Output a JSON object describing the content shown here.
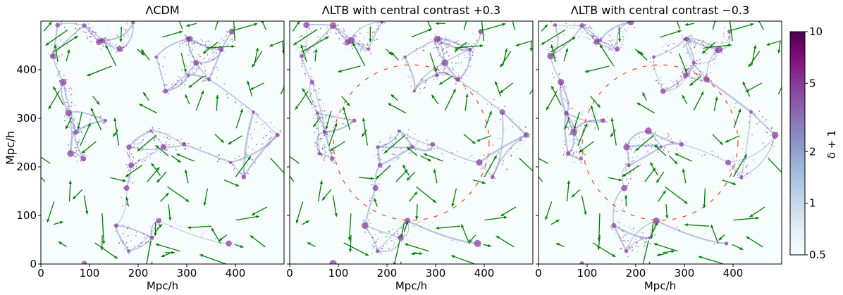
{
  "chart_data": {
    "type": "heatmap",
    "panels": [
      {
        "title": "ΛCDM",
        "ring": false
      },
      {
        "title": "ΛLTB with central contrast +0.3",
        "ring": true
      },
      {
        "title": "ΛLTB with central contrast −0.3",
        "ring": true
      }
    ],
    "xlabel": "Mpc/h",
    "ylabel": "Mpc/h",
    "xlim": [
      0,
      500
    ],
    "ylim": [
      0,
      500
    ],
    "xticks": [
      0,
      100,
      200,
      300,
      400
    ],
    "yticks": [
      0,
      100,
      200,
      300,
      400
    ],
    "xtick_labels": [
      "0",
      "100",
      "200",
      "300",
      "400"
    ],
    "ytick_labels": [
      "0",
      "100",
      "200",
      "300",
      "400"
    ],
    "colorbar": {
      "label": "δ + 1",
      "scale": "log",
      "range": [
        0.5,
        10
      ],
      "ticks": [
        0.5,
        1,
        2,
        5,
        10
      ],
      "tick_labels": [
        "0.5",
        "1",
        "2",
        "5",
        "10"
      ],
      "colormap": [
        "#f7fcfd",
        "#e0ecf4",
        "#bfd3e6",
        "#9ebcda",
        "#8c96c6",
        "#8c6bb1",
        "#88419d",
        "#810f7c",
        "#4d004b"
      ]
    },
    "overlay": {
      "arrows": "peculiar velocity vectors",
      "arrow_color": "#008000",
      "ring_color": "#ff3300",
      "ring_center": [
        250,
        250
      ],
      "ring_radius": 160
    }
  }
}
